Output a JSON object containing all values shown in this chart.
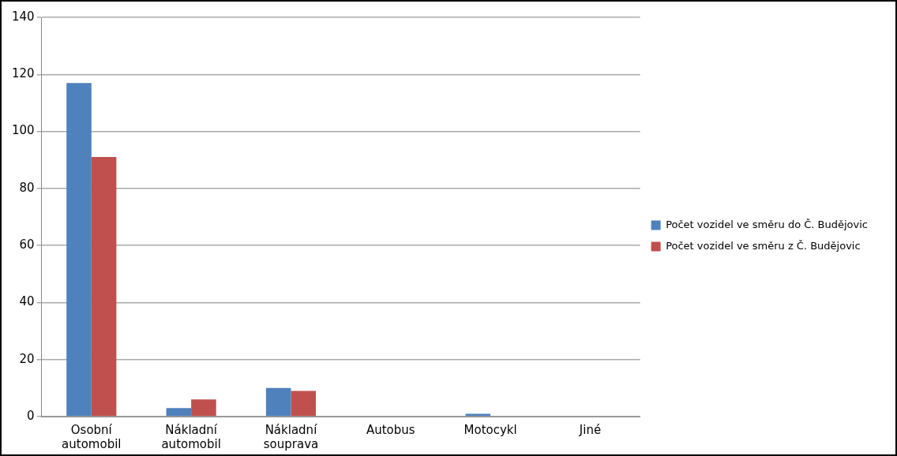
{
  "chart_data": {
    "type": "bar",
    "categories": [
      "Osobní automobil",
      "Nákladní automobil",
      "Nákladní souprava",
      "Autobus",
      "Motocykl",
      "Jiné"
    ],
    "series": [
      {
        "name": "Počet vozidel ve směru do Č. Budějovic",
        "color": "#4f81bd",
        "values": [
          117,
          3,
          10,
          0,
          1,
          0
        ]
      },
      {
        "name": "Počet vozidel ve směru z Č. Budějovic",
        "color": "#c0504d",
        "values": [
          91,
          6,
          9,
          0,
          0,
          0
        ]
      }
    ],
    "ylim": [
      0,
      140
    ],
    "yticks": [
      0,
      20,
      40,
      60,
      80,
      100,
      120,
      140
    ],
    "grid": "y",
    "legend": "right"
  }
}
